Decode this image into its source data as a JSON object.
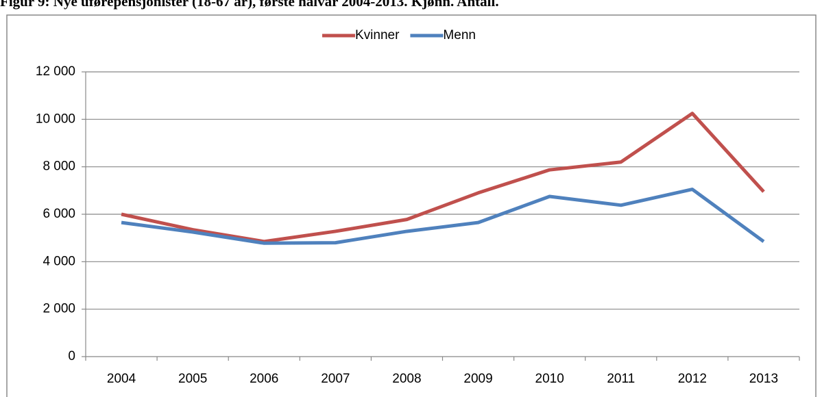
{
  "chart_data": {
    "type": "line",
    "title": "Figur 9: Nye uførepensjonister (18-67 år), første halvår 2004-2013. Kjønn. Antall.",
    "categories": [
      "2004",
      "2005",
      "2006",
      "2007",
      "2008",
      "2009",
      "2010",
      "2011",
      "2012",
      "2013"
    ],
    "series": [
      {
        "name": "Kvinner",
        "color": "#c0504d",
        "values": [
          6000,
          5350,
          4850,
          5280,
          5780,
          6900,
          7870,
          8200,
          10250,
          6950
        ]
      },
      {
        "name": "Menn",
        "color": "#4f81bd",
        "values": [
          5650,
          5250,
          4780,
          4800,
          5280,
          5650,
          6750,
          6380,
          7050,
          4850
        ]
      }
    ],
    "ylim": [
      0,
      12000
    ],
    "yticks": [
      0,
      {
        "value": 2000,
        "label": "2 000"
      },
      {
        "value": 4000,
        "label": "4 000"
      },
      {
        "value": 6000,
        "label": "6 000"
      },
      {
        "value": 8000,
        "label": "8 000"
      },
      {
        "value": 10000,
        "label": "10 000"
      },
      {
        "value": 12000,
        "label": "12 000"
      }
    ],
    "grid": true,
    "legend": "top"
  }
}
